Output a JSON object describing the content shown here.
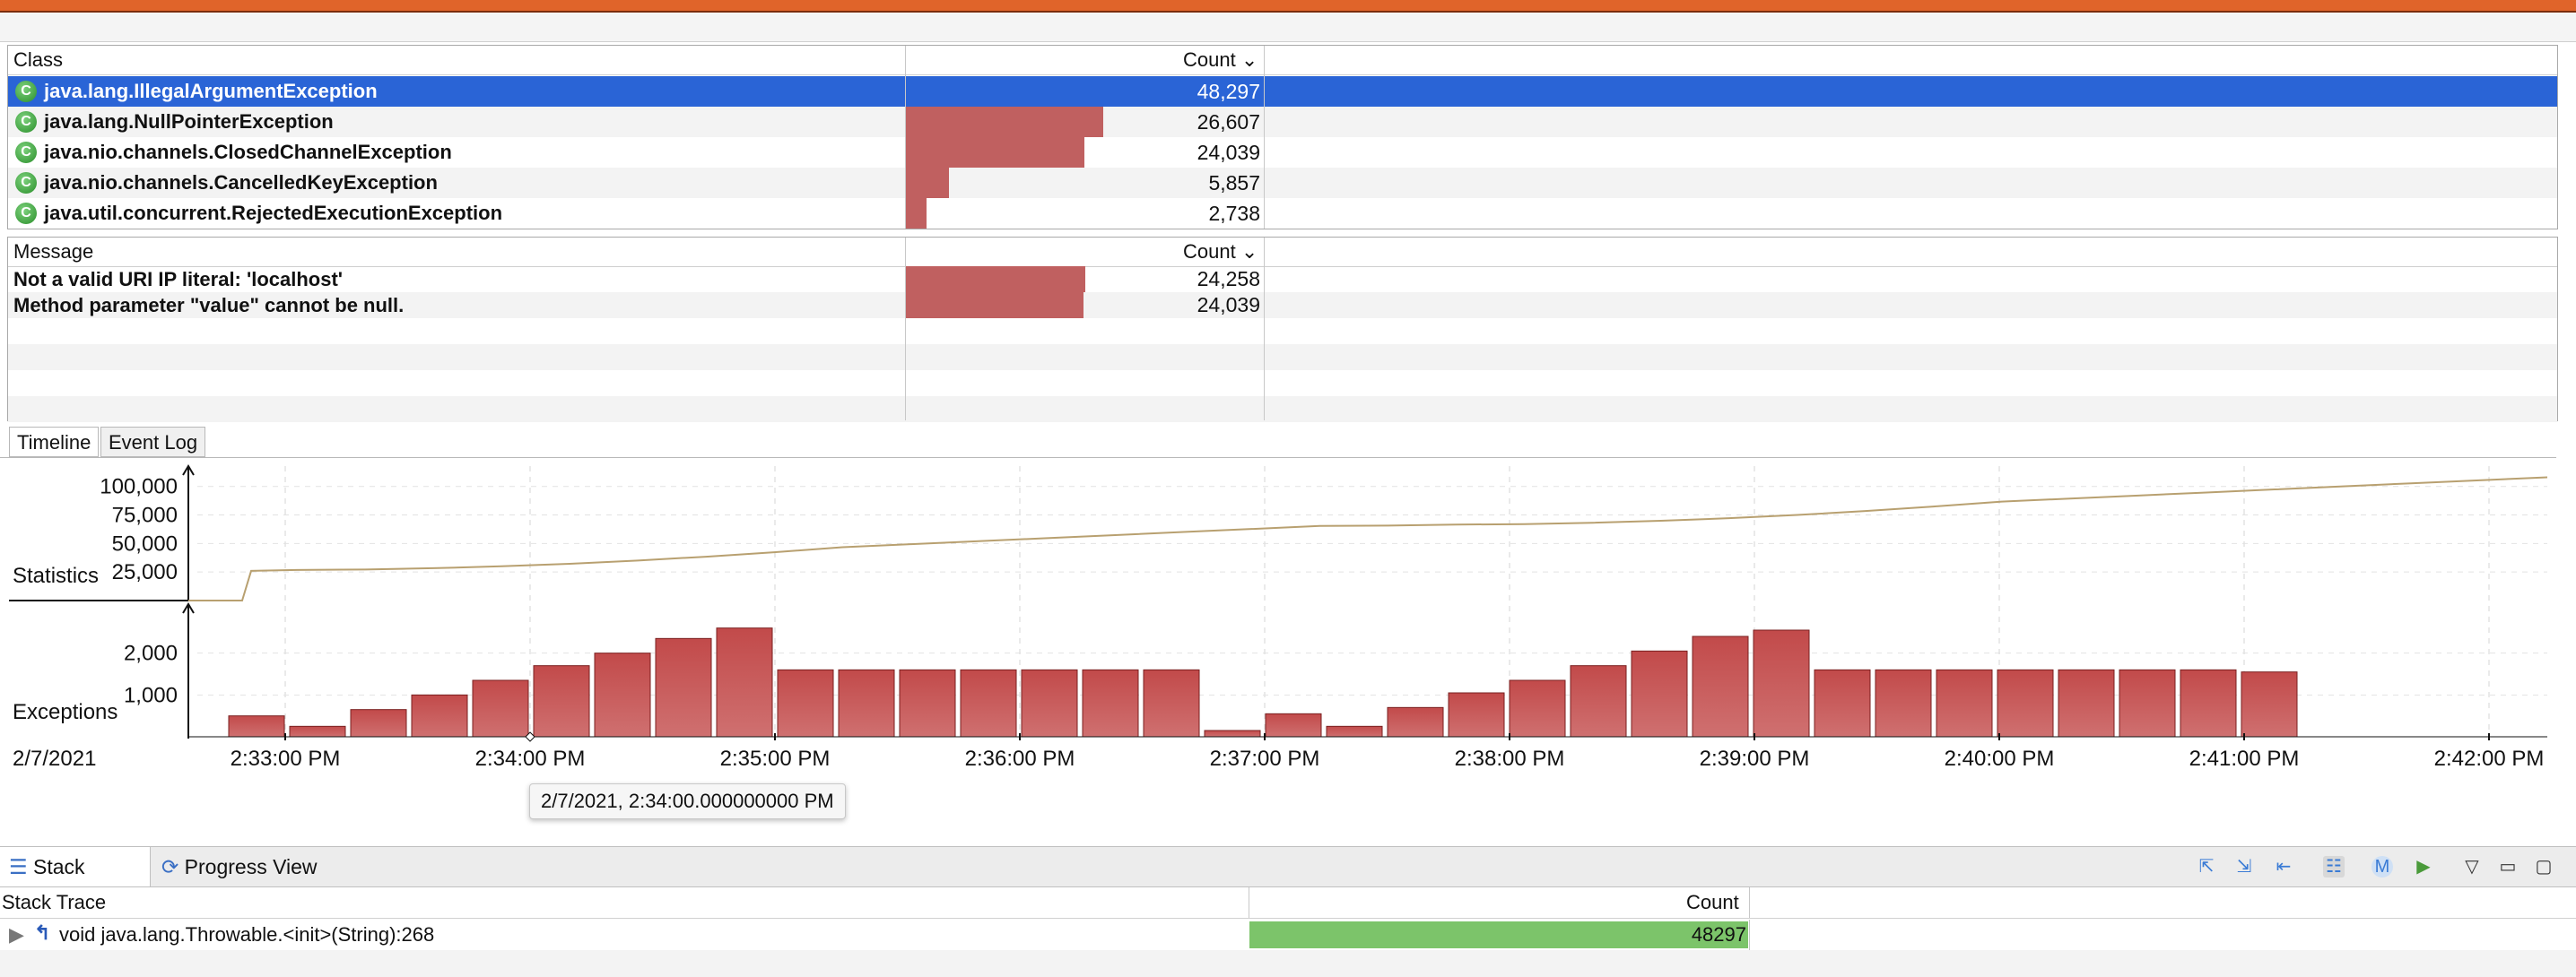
{
  "class_table": {
    "col_class": "Class",
    "col_count": "Count",
    "rows": [
      {
        "label": "java.lang.IllegalArgumentException",
        "count": "48,297",
        "fraction": 1.0
      },
      {
        "label": "java.lang.NullPointerException",
        "count": "26,607",
        "fraction": 0.551
      },
      {
        "label": "java.nio.channels.ClosedChannelException",
        "count": "24,039",
        "fraction": 0.498
      },
      {
        "label": "java.nio.channels.CancelledKeyException",
        "count": "5,857",
        "fraction": 0.121
      },
      {
        "label": "java.util.concurrent.RejectedExecutionException",
        "count": "2,738",
        "fraction": 0.057
      }
    ],
    "class_icon": "class-icon",
    "class_icon_letter": "C"
  },
  "message_table": {
    "col_message": "Message",
    "col_count": "Count",
    "rows": [
      {
        "label": "Not a valid URI IP literal: 'localhost'",
        "count": "24,258",
        "fraction": 1.0
      },
      {
        "label": "Method parameter \"value\" cannot be null.",
        "count": "24,039",
        "fraction": 0.991
      }
    ]
  },
  "tabs": {
    "timeline": "Timeline",
    "event_log": "Event Log"
  },
  "chart_data": {
    "type": "bar",
    "date_label": "2/7/2021",
    "statistics_label": "Statistics",
    "exceptions_label": "Exceptions",
    "statistics_ticks": [
      "100,000",
      "75,000",
      "50,000",
      "25,000"
    ],
    "exceptions_ticks": [
      "2,000",
      "1,000"
    ],
    "x_ticks": [
      "2:33:00 PM",
      "2:34:00 PM",
      "2:35:00 PM",
      "2:36:00 PM",
      "2:37:00 PM",
      "2:38:00 PM",
      "2:39:00 PM",
      "2:40:00 PM",
      "2:41:00 PM",
      "2:42:00 PM"
    ],
    "exceptions_values": [
      500,
      250,
      650,
      1000,
      1350,
      1700,
      2000,
      2350,
      2600,
      1600,
      1600,
      1600,
      1600,
      1600,
      1600,
      1600,
      150,
      550,
      250,
      700,
      1050,
      1350,
      1700,
      2050,
      2400,
      2550,
      1600,
      1600,
      1600,
      1600,
      1600,
      1600,
      1600,
      1550
    ],
    "exceptions_ylim": [
      0,
      3000
    ],
    "statistics_ylim": [
      0,
      110000
    ],
    "bar_color": "#c24a4a",
    "line_color": "#b8a070"
  },
  "tooltip": "2/7/2021, 2:34:00.000000000 PM",
  "bottom": {
    "tab_stack_trace": "Stack Trace",
    "tab_progress": "Progress View",
    "col_stack": "Stack Trace",
    "col_count": "Count",
    "row_label": "void java.lang.Throwable.<init>(String):268",
    "row_count": "48297",
    "row_fraction": 1.0,
    "green": "#7cc46a"
  }
}
